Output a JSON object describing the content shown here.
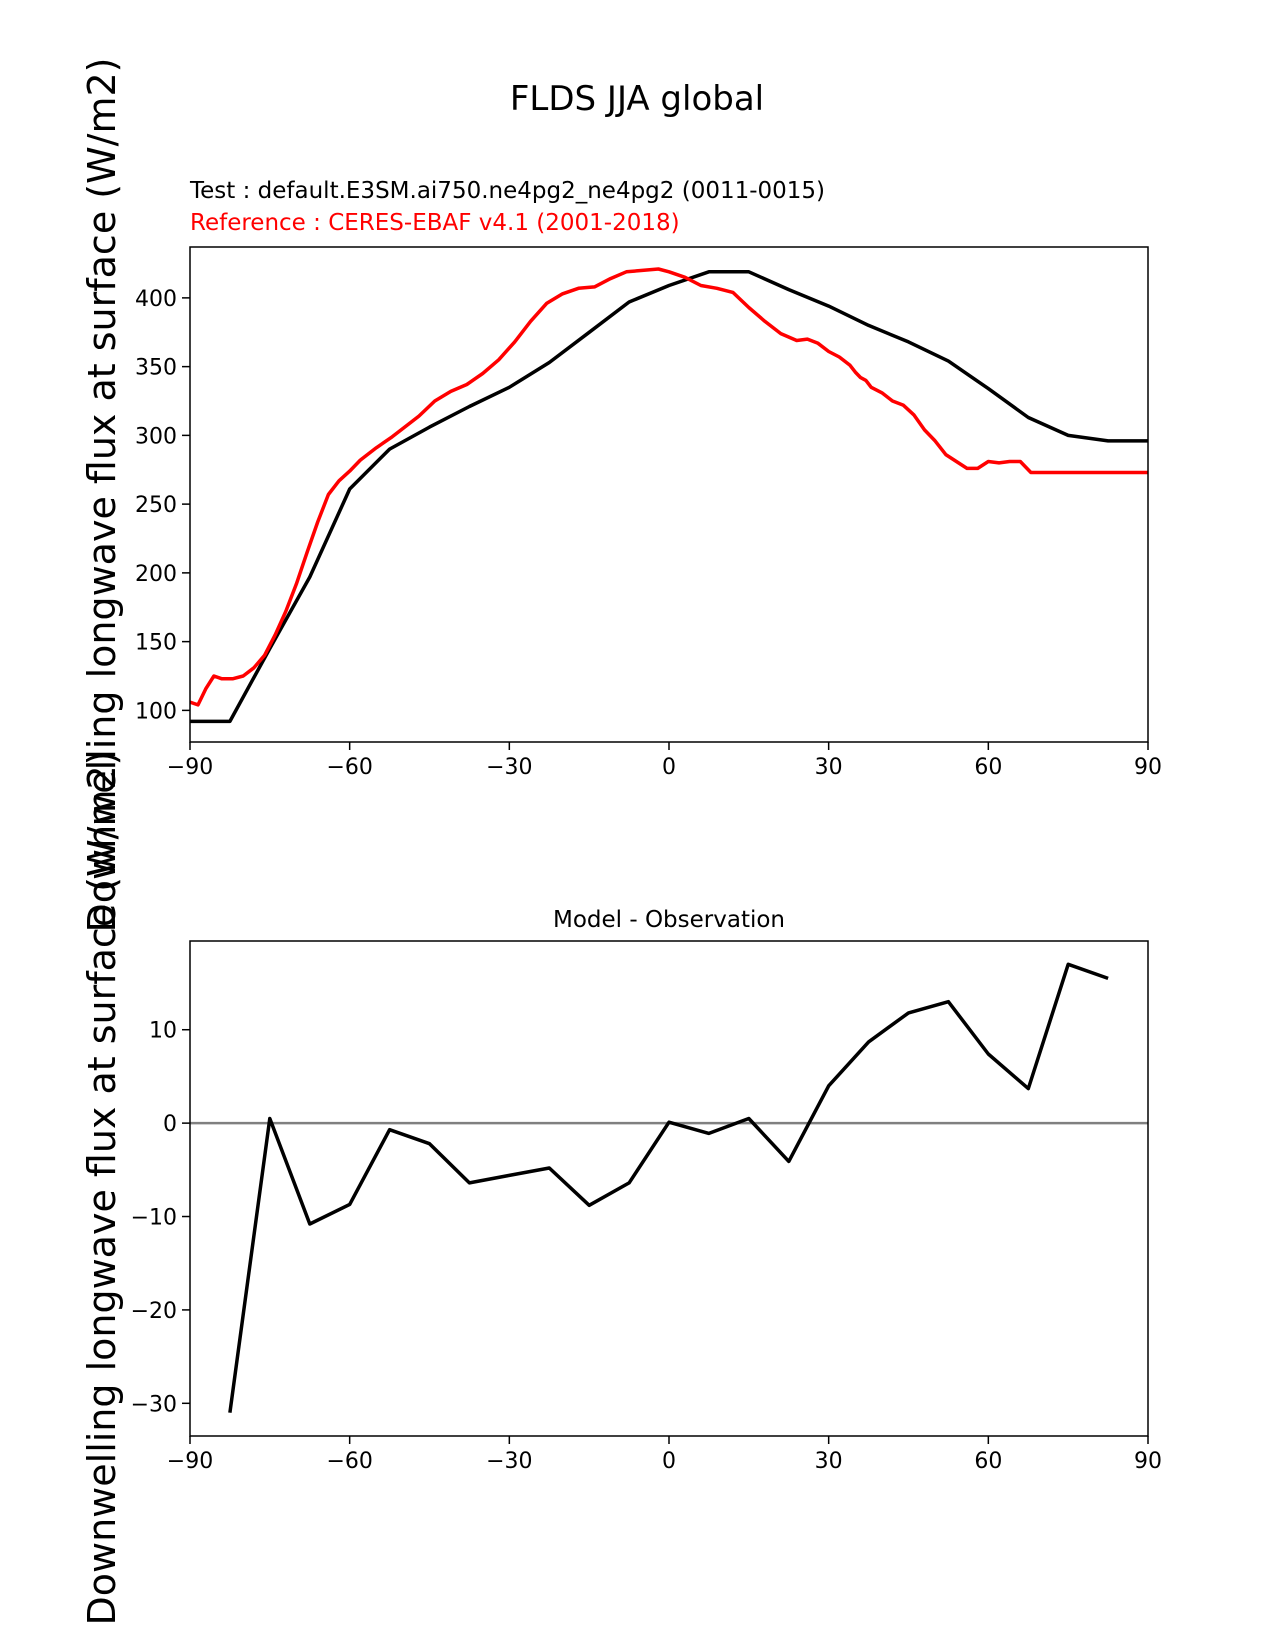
{
  "figure": {
    "title": "FLDS JJA global",
    "ylabel": "Downwelling longwave flux at surface (W/m2)"
  },
  "chart_data": [
    {
      "type": "line",
      "title": "",
      "test_label": "Test : default.E3SM.ai750.ne4pg2_ne4pg2 (0011-0015)",
      "reference_label": "Reference : CERES-EBAF v4.1 (2001-2018)",
      "xlabel": "",
      "ylabel": "Downwelling longwave flux at surface (W/m2)",
      "xlim": [
        -90,
        90
      ],
      "ylim": [
        77,
        437
      ],
      "xticks": [
        -90,
        -60,
        -30,
        0,
        30,
        60,
        90
      ],
      "yticks": [
        100,
        150,
        200,
        250,
        300,
        350,
        400
      ],
      "grid": false,
      "series": [
        {
          "color": "#000000",
          "x": [
            -90,
            -82.5,
            -75,
            -67.5,
            -60,
            -52.5,
            -45,
            -37.5,
            -30,
            -22.5,
            -15,
            -7.5,
            0,
            7.5,
            15,
            22.5,
            30,
            37.5,
            45,
            52.5,
            60,
            67.5,
            75,
            82.5,
            90
          ],
          "y": [
            92,
            92,
            145,
            197,
            261,
            290,
            306,
            321,
            335,
            353,
            375,
            397,
            409,
            419,
            419,
            406,
            394,
            380,
            368,
            354,
            334,
            313,
            300,
            296,
            296
          ]
        },
        {
          "color": "#ff0000",
          "x": [
            -90,
            -88.5,
            -87,
            -85.5,
            -84,
            -82,
            -80,
            -78,
            -76,
            -74,
            -72,
            -70,
            -68,
            -66,
            -64,
            -62,
            -60,
            -58,
            -55,
            -52,
            -50,
            -47,
            -44,
            -41,
            -38,
            -35,
            -32,
            -29,
            -26,
            -23,
            -20,
            -17,
            -14,
            -11,
            -8,
            -5,
            -2,
            0,
            3,
            6,
            9,
            12,
            15,
            18,
            21,
            24,
            26,
            28,
            30,
            32,
            34,
            35,
            36,
            37,
            38,
            40,
            42,
            44,
            46,
            48,
            50,
            52,
            54,
            56,
            58,
            60,
            62,
            64,
            66,
            68,
            70,
            72,
            74,
            76,
            78,
            80,
            81,
            82,
            83,
            84,
            85,
            86,
            87,
            88,
            89,
            90
          ],
          "y": [
            106,
            104,
            116,
            125,
            123,
            123,
            125,
            131,
            140,
            155,
            172,
            192,
            215,
            237,
            257,
            267,
            274,
            282,
            291,
            299,
            305,
            314,
            325,
            332,
            337,
            345,
            355,
            368,
            383,
            396,
            403,
            407,
            408,
            414,
            419,
            420,
            421,
            419,
            415,
            409,
            407,
            404,
            393,
            383,
            374,
            369,
            370,
            367,
            361,
            357,
            351,
            346,
            342,
            340,
            335,
            331,
            325,
            322,
            315,
            304,
            296,
            286,
            281,
            276,
            276,
            281,
            280,
            281,
            281,
            273,
            273,
            273,
            273,
            273,
            273,
            273,
            273,
            273,
            273,
            273,
            273,
            273,
            273,
            273,
            273,
            273
          ]
        }
      ]
    },
    {
      "type": "line",
      "title": "Model - Observation",
      "xlabel": "",
      "ylabel": "Downwelling longwave flux at surface (W/m2)",
      "xlim": [
        -90,
        90
      ],
      "ylim": [
        -33.5,
        19.5
      ],
      "xticks": [
        -90,
        -60,
        -30,
        0,
        30,
        60,
        90
      ],
      "yticks": [
        -30,
        -20,
        -10,
        0,
        10
      ],
      "grid": false,
      "zero_line_color": "#808080",
      "series": [
        {
          "color": "#000000",
          "x": [
            -82.5,
            -75,
            -67.5,
            -60,
            -52.5,
            -45,
            -37.5,
            -30,
            -22.5,
            -15,
            -7.5,
            0,
            7.5,
            15,
            22.5,
            30,
            37.5,
            45,
            52.5,
            60,
            67.5,
            75,
            82.5
          ],
          "y": [
            -31,
            0.5,
            -10.8,
            -8.7,
            -0.7,
            -2.2,
            -6.4,
            -5.6,
            -4.8,
            -8.8,
            -6.4,
            0.1,
            -1.1,
            0.5,
            -4.1,
            4.0,
            8.7,
            11.8,
            13.0,
            7.4,
            3.7,
            17.0,
            15.5
          ]
        }
      ]
    }
  ]
}
